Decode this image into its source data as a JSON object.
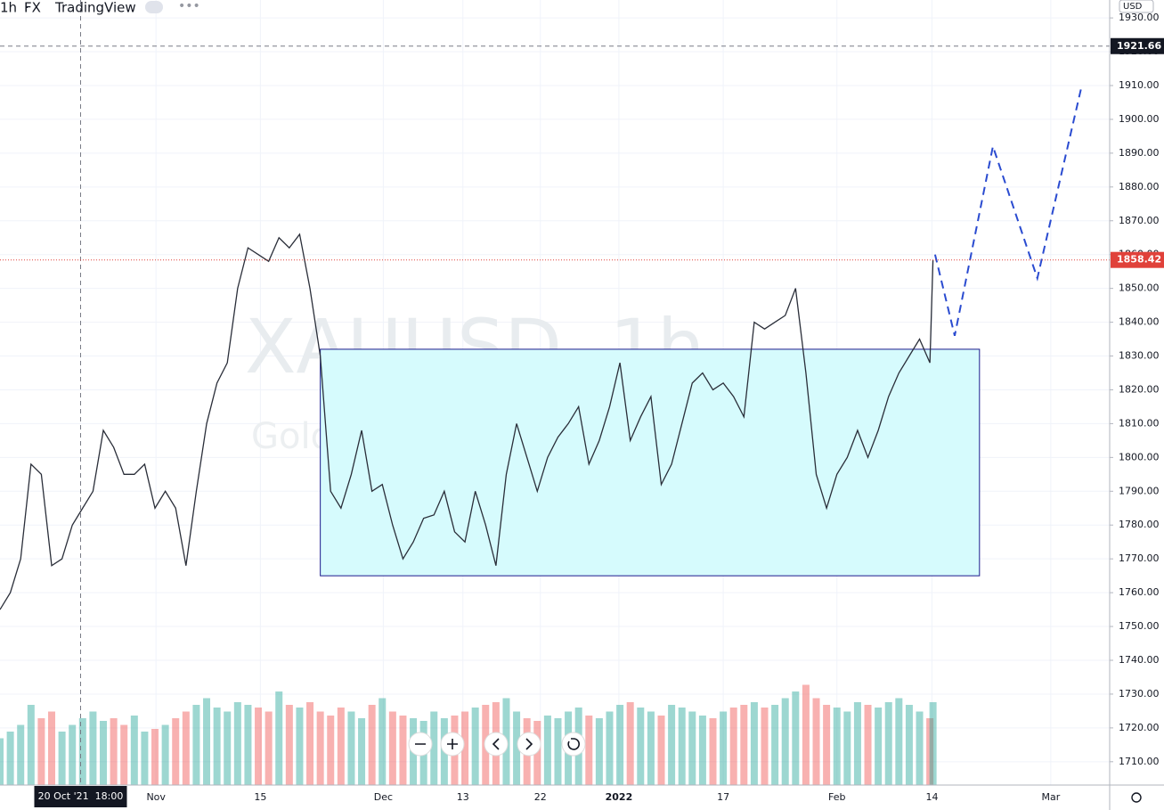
{
  "chart_data": {
    "type": "line",
    "header": [
      "1h",
      "FX",
      "TradingView"
    ],
    "watermark": "XAUUSD, 1h",
    "watermark_subtitle": "Gold Spot / U.S. Dollar",
    "currency": "USD",
    "color": "#2a2e39",
    "x": [
      0,
      1,
      2,
      3,
      4,
      5,
      6,
      7,
      8,
      9,
      10,
      11,
      12,
      13,
      14,
      15,
      16,
      17,
      18,
      19,
      20,
      21,
      22,
      23,
      24,
      25,
      26,
      27,
      28,
      29,
      30,
      31,
      32,
      33,
      34,
      35,
      36,
      37,
      38,
      39,
      40,
      41,
      42,
      43,
      44,
      45,
      46,
      47,
      48,
      49,
      50,
      51,
      52,
      53,
      54,
      55,
      56,
      57,
      58,
      59,
      60,
      61,
      62,
      63,
      64,
      65,
      66,
      67,
      68,
      69,
      70,
      71,
      72,
      73,
      74,
      75,
      76,
      77,
      78,
      79,
      80,
      81,
      82,
      83,
      84,
      85,
      86,
      87,
      88,
      89,
      90,
      90.3
    ],
    "values": [
      1755,
      1760,
      1770,
      1798,
      1795,
      1768,
      1770,
      1780,
      1785,
      1790,
      1808,
      1803,
      1795,
      1795,
      1798,
      1785,
      1790,
      1785,
      1768,
      1790,
      1810,
      1822,
      1828,
      1850,
      1862,
      1860,
      1858,
      1865,
      1862,
      1866,
      1850,
      1830,
      1790,
      1785,
      1795,
      1808,
      1790,
      1792,
      1780,
      1770,
      1775,
      1782,
      1783,
      1790,
      1778,
      1775,
      1790,
      1780,
      1768,
      1795,
      1810,
      1800,
      1790,
      1800,
      1806,
      1810,
      1815,
      1798,
      1805,
      1815,
      1828,
      1805,
      1812,
      1818,
      1792,
      1798,
      1810,
      1822,
      1825,
      1820,
      1822,
      1818,
      1812,
      1840,
      1838,
      1840,
      1842,
      1850,
      1825,
      1795,
      1785,
      1795,
      1800,
      1808,
      1800,
      1808,
      1818,
      1825,
      1830,
      1835,
      1828,
      1858.42
    ],
    "volume": [
      35,
      40,
      45,
      60,
      50,
      55,
      40,
      45,
      50,
      55,
      48,
      50,
      45,
      52,
      40,
      42,
      45,
      50,
      55,
      60,
      65,
      58,
      55,
      62,
      60,
      58,
      55,
      70,
      60,
      58,
      62,
      55,
      52,
      58,
      55,
      50,
      60,
      65,
      55,
      52,
      50,
      48,
      55,
      50,
      52,
      55,
      58,
      60,
      62,
      65,
      55,
      50,
      48,
      52,
      50,
      55,
      58,
      52,
      50,
      55,
      60,
      62,
      58,
      55,
      52,
      60,
      58,
      55,
      52,
      50,
      55,
      58,
      60,
      62,
      58,
      60,
      65,
      70,
      75,
      65,
      60,
      58,
      55,
      62,
      60,
      58,
      62,
      65,
      60,
      55,
      50,
      62
    ],
    "volume_lim": [
      0,
      100
    ],
    "volume_up_color": "#26a69a",
    "volume_down_color": "#ef5350",
    "xlim": [
      0,
      107.4
    ],
    "ylim": [
      1703.1,
      1935.3
    ],
    "xticks": [
      {
        "value": 15.1,
        "label": "Nov"
      },
      {
        "value": 25.2,
        "label": "15"
      },
      {
        "value": 37.1,
        "label": "Dec"
      },
      {
        "value": 44.8,
        "label": "13"
      },
      {
        "value": 52.3,
        "label": "22"
      },
      {
        "value": 59.9,
        "label": "2022"
      },
      {
        "value": 70,
        "label": "17"
      },
      {
        "value": 81,
        "label": "Feb"
      },
      {
        "value": 90.2,
        "label": "14"
      },
      {
        "value": 101.7,
        "label": "Mar"
      }
    ],
    "yticks": [
      {
        "value": 1710,
        "label": "1710.00"
      },
      {
        "value": 1720,
        "label": "1720.00"
      },
      {
        "value": 1730,
        "label": "1730.00"
      },
      {
        "value": 1740,
        "label": "1740.00"
      },
      {
        "value": 1750,
        "label": "1750.00"
      },
      {
        "value": 1760,
        "label": "1760.00"
      },
      {
        "value": 1770,
        "label": "1770.00"
      },
      {
        "value": 1780,
        "label": "1780.00"
      },
      {
        "value": 1790,
        "label": "1790.00"
      },
      {
        "value": 1800,
        "label": "1800.00"
      },
      {
        "value": 1810,
        "label": "1810.00"
      },
      {
        "value": 1820,
        "label": "1820.00"
      },
      {
        "value": 1830,
        "label": "1830.00"
      },
      {
        "value": 1840,
        "label": "1840.00"
      },
      {
        "value": 1850,
        "label": "1850.00"
      },
      {
        "value": 1860,
        "label": "1860.00"
      },
      {
        "value": 1870,
        "label": "1870.00"
      },
      {
        "value": 1880,
        "label": "1880.00"
      },
      {
        "value": 1890,
        "label": "1890.00"
      },
      {
        "value": 1900,
        "label": "1900.00"
      },
      {
        "value": 1910,
        "label": "1910.00"
      },
      {
        "value": 1920,
        "label": "1920.00"
      },
      {
        "value": 1930,
        "label": "1930.00"
      }
    ],
    "grid": true,
    "crosshair": {
      "x": 7.8,
      "label": "20 Oct '21  18:00",
      "y": 1921.66,
      "y_label": "1921.66"
    },
    "last_price": {
      "value": 1858.42,
      "label": "1858.42",
      "color": "#e0413a"
    },
    "box": {
      "x": [
        31,
        94.8
      ],
      "y": [
        1765,
        1832
      ],
      "color": "#1a1a8c",
      "fill": "#d6fbfd"
    },
    "projection": {
      "x": [
        90.5,
        92.4,
        96.1,
        100.4,
        104.7
      ],
      "y": [
        1860,
        1836,
        1892,
        1853,
        1910
      ],
      "color": "#2a4bd0"
    }
  }
}
